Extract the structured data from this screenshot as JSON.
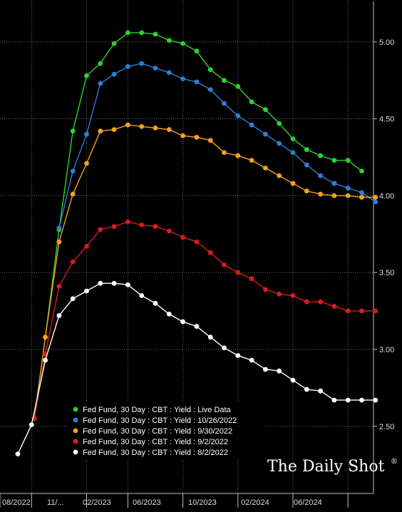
{
  "chart_data": {
    "type": "line",
    "title": "",
    "xlabel": "",
    "ylabel": "",
    "ylim": [
      2.25,
      5.25
    ],
    "x_ticks": [
      "08/2022",
      "11/...",
      "02/2023",
      "06/2023",
      "10/2023",
      "02/2024",
      "06/2024"
    ],
    "y_ticks": [
      "2.50",
      "3.00",
      "3.50",
      "4.00",
      "4.50",
      "5.00"
    ],
    "grid": true,
    "legend_position": "bottom-left",
    "series": [
      {
        "name": "Fed Fund, 30 Day : CBT : Yield : Live Data",
        "color": "#2fd12f",
        "points": [
          [
            14.1,
            2.55
          ],
          [
            14.9,
            3.08
          ],
          [
            15.9,
            3.78
          ],
          [
            16.9,
            4.42
          ],
          [
            17.9,
            4.78
          ],
          [
            18.9,
            4.86
          ],
          [
            19.9,
            4.99
          ],
          [
            20.9,
            5.06
          ],
          [
            21.9,
            5.06
          ],
          [
            22.9,
            5.05
          ],
          [
            23.9,
            5.01
          ],
          [
            24.9,
            4.99
          ],
          [
            25.9,
            4.94
          ],
          [
            26.9,
            4.82
          ],
          [
            27.9,
            4.75
          ],
          [
            28.9,
            4.71
          ],
          [
            29.9,
            4.61
          ],
          [
            30.9,
            4.56
          ],
          [
            31.9,
            4.47
          ],
          [
            32.9,
            4.37
          ],
          [
            33.9,
            4.3
          ],
          [
            34.9,
            4.26
          ],
          [
            35.9,
            4.23
          ],
          [
            36.9,
            4.23
          ],
          [
            37.9,
            4.16
          ]
        ]
      },
      {
        "name": "Fed Fund, 30 Day : CBT : Yield : 10/26/2022",
        "color": "#2a7fd4",
        "points": [
          [
            15.9,
            3.79
          ],
          [
            16.9,
            4.16
          ],
          [
            17.9,
            4.4
          ],
          [
            18.9,
            4.73
          ],
          [
            19.9,
            4.79
          ],
          [
            20.9,
            4.84
          ],
          [
            21.9,
            4.86
          ],
          [
            22.9,
            4.83
          ],
          [
            23.9,
            4.8
          ],
          [
            24.9,
            4.76
          ],
          [
            25.9,
            4.74
          ],
          [
            26.9,
            4.69
          ],
          [
            27.9,
            4.6
          ],
          [
            28.9,
            4.52
          ],
          [
            29.9,
            4.46
          ],
          [
            30.9,
            4.4
          ],
          [
            31.9,
            4.34
          ],
          [
            32.9,
            4.28
          ],
          [
            33.9,
            4.2
          ],
          [
            34.9,
            4.13
          ],
          [
            35.9,
            4.08
          ],
          [
            36.9,
            4.05
          ],
          [
            37.9,
            4.02
          ],
          [
            38.9,
            3.96
          ]
        ]
      },
      {
        "name": "Fed Fund, 30 Day : CBT : Yield : 9/30/2022",
        "color": "#f5a020",
        "points": [
          [
            14.1,
            2.55
          ],
          [
            14.9,
            3.08
          ],
          [
            15.9,
            3.7
          ],
          [
            16.9,
            4.01
          ],
          [
            17.9,
            4.21
          ],
          [
            18.9,
            4.42
          ],
          [
            19.9,
            4.43
          ],
          [
            20.9,
            4.46
          ],
          [
            21.9,
            4.45
          ],
          [
            22.9,
            4.44
          ],
          [
            23.9,
            4.43
          ],
          [
            24.9,
            4.39
          ],
          [
            25.9,
            4.38
          ],
          [
            26.9,
            4.36
          ],
          [
            27.9,
            4.28
          ],
          [
            28.9,
            4.26
          ],
          [
            29.9,
            4.23
          ],
          [
            30.9,
            4.18
          ],
          [
            31.9,
            4.13
          ],
          [
            32.9,
            4.08
          ],
          [
            33.9,
            4.03
          ],
          [
            34.9,
            4.01
          ],
          [
            35.9,
            4.0
          ],
          [
            36.9,
            4.0
          ],
          [
            37.9,
            3.99
          ],
          [
            38.9,
            3.99
          ]
        ]
      },
      {
        "name": "Fed Fund, 30 Day : CBT : Yield : 9/2/2022",
        "color": "#d41e1e",
        "points": [
          [
            14.1,
            2.55
          ],
          [
            14.9,
            2.97
          ],
          [
            15.9,
            3.41
          ],
          [
            16.9,
            3.57
          ],
          [
            17.9,
            3.67
          ],
          [
            18.9,
            3.78
          ],
          [
            19.9,
            3.8
          ],
          [
            20.9,
            3.83
          ],
          [
            21.9,
            3.81
          ],
          [
            22.9,
            3.8
          ],
          [
            23.9,
            3.77
          ],
          [
            24.9,
            3.73
          ],
          [
            25.9,
            3.7
          ],
          [
            26.9,
            3.63
          ],
          [
            27.9,
            3.55
          ],
          [
            28.9,
            3.5
          ],
          [
            29.9,
            3.46
          ],
          [
            30.9,
            3.39
          ],
          [
            31.9,
            3.36
          ],
          [
            32.9,
            3.35
          ],
          [
            33.9,
            3.31
          ],
          [
            34.9,
            3.31
          ],
          [
            35.9,
            3.28
          ],
          [
            36.9,
            3.25
          ],
          [
            37.9,
            3.25
          ],
          [
            38.9,
            3.25
          ]
        ]
      },
      {
        "name": "Fed Fund, 30 Day : CBT : Yield : 8/2/2022",
        "color": "#ffffff",
        "points": [
          [
            12.9,
            2.32
          ],
          [
            13.9,
            2.51
          ],
          [
            14.9,
            2.93
          ],
          [
            15.9,
            3.22
          ],
          [
            16.9,
            3.33
          ],
          [
            17.9,
            3.38
          ],
          [
            18.9,
            3.43
          ],
          [
            19.9,
            3.43
          ],
          [
            20.9,
            3.42
          ],
          [
            21.9,
            3.35
          ],
          [
            22.9,
            3.3
          ],
          [
            23.9,
            3.23
          ],
          [
            24.9,
            3.18
          ],
          [
            25.9,
            3.15
          ],
          [
            26.9,
            3.08
          ],
          [
            27.9,
            3.01
          ],
          [
            28.9,
            2.96
          ],
          [
            29.9,
            2.93
          ],
          [
            30.9,
            2.87
          ],
          [
            31.9,
            2.86
          ],
          [
            32.9,
            2.8
          ],
          [
            33.9,
            2.74
          ],
          [
            34.9,
            2.73
          ],
          [
            35.9,
            2.67
          ],
          [
            36.9,
            2.67
          ],
          [
            37.9,
            2.67
          ],
          [
            38.9,
            2.67
          ]
        ]
      }
    ]
  },
  "brand": {
    "text": "The Daily Shot",
    "mark": "®"
  }
}
